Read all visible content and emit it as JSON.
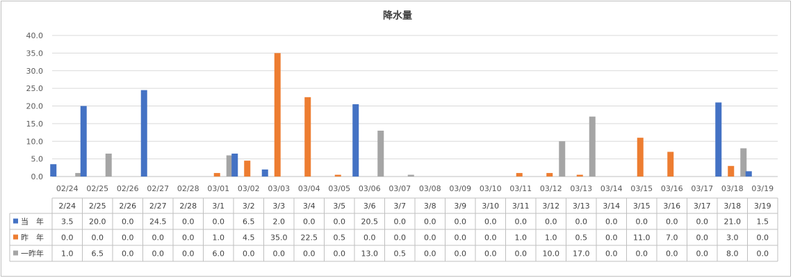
{
  "chart_data": {
    "type": "bar",
    "title": "降水量",
    "ylim": [
      0,
      40
    ],
    "yticks": [
      "0.0",
      "5.0",
      "10.0",
      "15.0",
      "20.0",
      "25.0",
      "30.0",
      "35.0",
      "40.0"
    ],
    "grid": true,
    "categories": [
      "02/24",
      "02/25",
      "02/26",
      "02/27",
      "02/28",
      "03/01",
      "03/02",
      "03/03",
      "03/04",
      "03/05",
      "03/06",
      "03/07",
      "03/08",
      "03/09",
      "03/10",
      "03/11",
      "03/12",
      "03/13",
      "03/14",
      "03/15",
      "03/16",
      "03/17",
      "03/18",
      "03/19"
    ],
    "table_categories": [
      "2/24",
      "2/25",
      "2/26",
      "2/27",
      "2/28",
      "3/1",
      "3/2",
      "3/3",
      "3/4",
      "3/5",
      "3/6",
      "3/7",
      "3/8",
      "3/9",
      "3/10",
      "3/11",
      "3/12",
      "3/13",
      "3/14",
      "3/15",
      "3/16",
      "3/17",
      "3/18",
      "3/19"
    ],
    "series": [
      {
        "name": "当　年",
        "color": "#4472c4",
        "values": [
          3.5,
          20.0,
          0.0,
          24.5,
          0.0,
          0.0,
          6.5,
          2.0,
          0.0,
          0.0,
          20.5,
          0.0,
          0.0,
          0.0,
          0.0,
          0.0,
          0.0,
          0.0,
          0.0,
          0.0,
          0.0,
          0.0,
          21.0,
          1.5
        ],
        "labels": [
          "3.5",
          "20.0",
          "0.0",
          "24.5",
          "0.0",
          "0.0",
          "6.5",
          "2.0",
          "0.0",
          "0.0",
          "20.5",
          "0.0",
          "0.0",
          "0.0",
          "0.0",
          "0.0",
          "0.0",
          "0.0",
          "0.0",
          "0.0",
          "0.0",
          "0.0",
          "21.0",
          "1.5"
        ]
      },
      {
        "name": "昨　年",
        "color": "#ed7d31",
        "values": [
          0.0,
          0.0,
          0.0,
          0.0,
          0.0,
          1.0,
          4.5,
          35.0,
          22.5,
          0.5,
          0.0,
          0.0,
          0.0,
          0.0,
          0.0,
          1.0,
          1.0,
          0.5,
          0.0,
          11.0,
          7.0,
          0.0,
          3.0,
          0.0
        ],
        "labels": [
          "0.0",
          "0.0",
          "0.0",
          "0.0",
          "0.0",
          "1.0",
          "4.5",
          "35.0",
          "22.5",
          "0.5",
          "0.0",
          "0.0",
          "0.0",
          "0.0",
          "0.0",
          "1.0",
          "1.0",
          "0.5",
          "0.0",
          "11.0",
          "7.0",
          "0.0",
          "3.0",
          "0.0"
        ]
      },
      {
        "name": "一昨年",
        "color": "#a5a5a5",
        "values": [
          1.0,
          6.5,
          0.0,
          0.0,
          0.0,
          6.0,
          0.0,
          0.0,
          0.0,
          0.0,
          13.0,
          0.5,
          0.0,
          0.0,
          0.0,
          0.0,
          10.0,
          17.0,
          0.0,
          0.0,
          0.0,
          0.0,
          8.0,
          0.0
        ],
        "labels": [
          "1.0",
          "6.5",
          "0.0",
          "0.0",
          "0.0",
          "6.0",
          "0.0",
          "0.0",
          "0.0",
          "0.0",
          "13.0",
          "0.5",
          "0.0",
          "0.0",
          "0.0",
          "0.0",
          "10.0",
          "17.0",
          "0.0",
          "0.0",
          "0.0",
          "0.0",
          "8.0",
          "0.0"
        ]
      }
    ]
  }
}
